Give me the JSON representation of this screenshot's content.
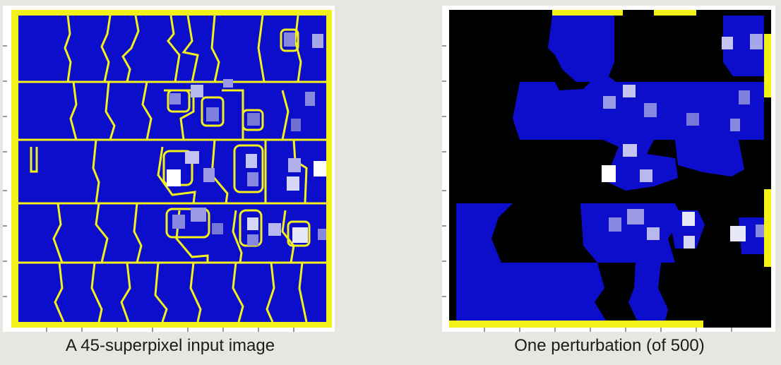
{
  "slide": {
    "left_caption": "A 45-superpixel input image",
    "right_caption": "One perturbation (of 500)"
  },
  "colors": {
    "background": "#e8e6e1",
    "superpixel_fill": "#0d0dcc",
    "boundary": "#f2f21a",
    "masked": "#000000",
    "highlight": "#b8b8ee"
  }
}
